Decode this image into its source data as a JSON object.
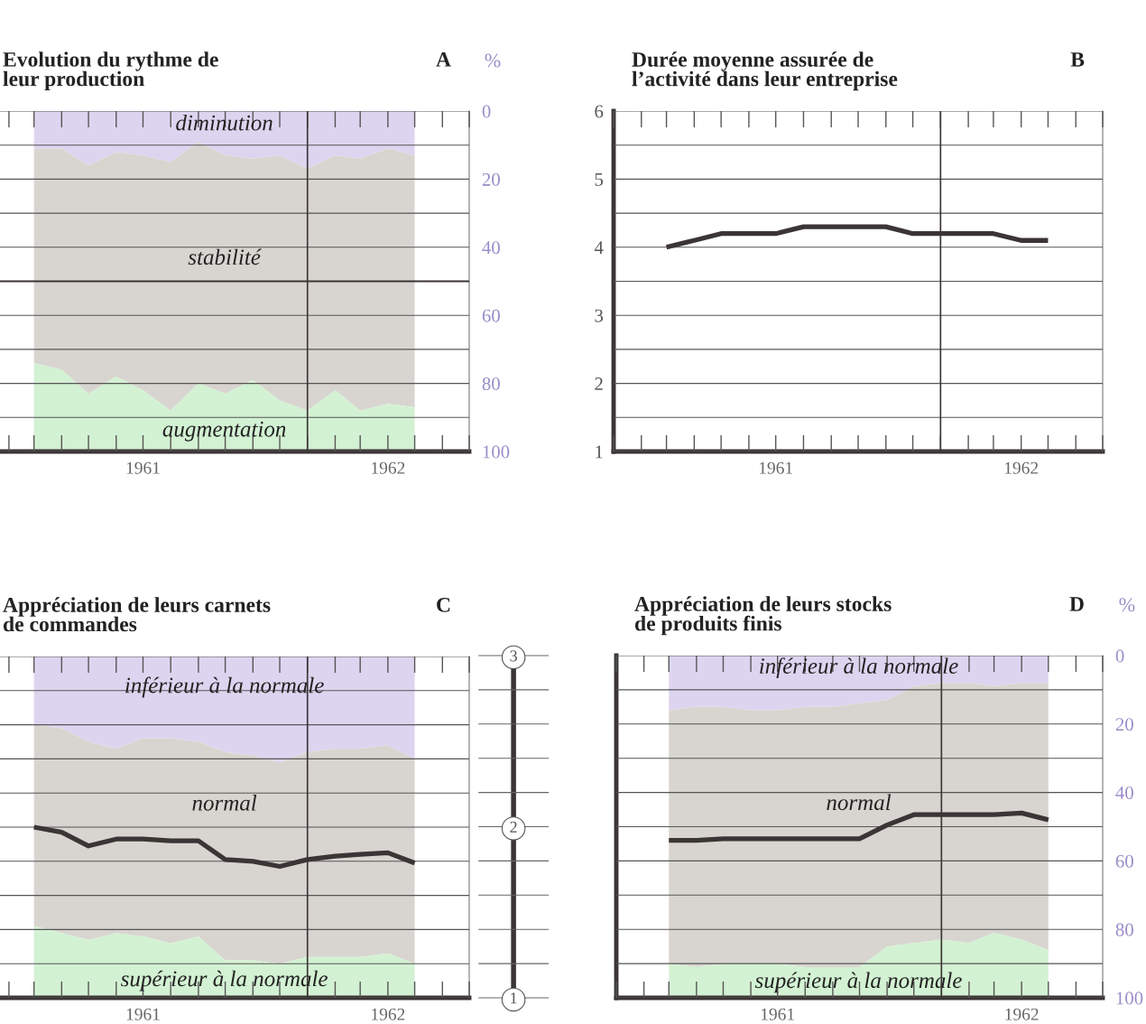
{
  "chart_data": [
    {
      "type": "area",
      "title": "Evolution du rythme de\nleur production",
      "annotations": [
        "A"
      ],
      "x": [
        "1961-03",
        "1961-04",
        "1961-05",
        "1961-06",
        "1961-07",
        "1961-08",
        "1961-09",
        "1961-10",
        "1961-11",
        "1961-12",
        "1962-01",
        "1962-02",
        "1962-03",
        "1962-04",
        "1962-05"
      ],
      "xlim": [
        "1961-01-22",
        "1962-07"
      ],
      "xticks": [
        {
          "value": "1961-07",
          "label": "1961"
        },
        {
          "value": "1962-04",
          "label": "1962"
        }
      ],
      "ylim": [
        100,
        0
      ],
      "yticks": [
        0,
        {
          "value": 10,
          "label": null
        },
        20,
        {
          "value": 30,
          "label": null
        },
        40,
        {
          "value": 50,
          "label": null
        },
        60,
        {
          "value": 70,
          "label": null
        },
        80,
        {
          "value": 90,
          "label": null
        },
        100
      ],
      "ylabel": "%",
      "stacked": true,
      "grid": "y",
      "ref_lines": [
        {
          "axis": "x",
          "value": "1962-01"
        },
        {
          "axis": "y",
          "value": 50
        }
      ],
      "series": [
        {
          "name": "diminution",
          "color": "#ddd5f0",
          "values": [
            11,
            11,
            16,
            12,
            13,
            15,
            9,
            13,
            14,
            13,
            17,
            13,
            14,
            11,
            13
          ]
        },
        {
          "name": "stabilité",
          "color": "#d8d5d0",
          "values": [
            63,
            65,
            67,
            66,
            69,
            73,
            71,
            70,
            65,
            72,
            71,
            69,
            74,
            75,
            74
          ]
        },
        {
          "name": "augmentation",
          "color": "#d3f1d3",
          "values": [
            26,
            24,
            17,
            22,
            18,
            12,
            20,
            17,
            21,
            15,
            12,
            18,
            12,
            14,
            13
          ]
        }
      ]
    },
    {
      "type": "line",
      "title": "Durée moyenne assurée de\nl’activité dans leur entreprise",
      "annotations": [
        "B"
      ],
      "x": [
        "1961-03",
        "1961-04",
        "1961-05",
        "1961-06",
        "1961-07",
        "1961-08",
        "1961-09",
        "1961-10",
        "1961-11",
        "1961-12",
        "1962-01",
        "1962-02",
        "1962-03",
        "1962-04",
        "1962-05"
      ],
      "xlim": [
        "1961-01",
        "1962-07"
      ],
      "xticks": [
        {
          "value": "1961-07",
          "label": "1961"
        },
        {
          "value": "1962-04",
          "label": "1962"
        }
      ],
      "ylim": [
        1,
        6
      ],
      "yticks": [
        1,
        {
          "value": 1.5,
          "label": null
        },
        2,
        {
          "value": 2.5,
          "label": null
        },
        3,
        {
          "value": 3.5,
          "label": null
        },
        4,
        {
          "value": 4.5,
          "label": null
        },
        5,
        {
          "value": 5.5,
          "label": null
        },
        6
      ],
      "grid": "y",
      "ref_lines": [
        {
          "axis": "x",
          "value": "1962-01"
        }
      ],
      "series": [
        {
          "color": "#3b3535",
          "values": [
            4.0,
            4.1,
            4.2,
            4.2,
            4.2,
            4.3,
            4.3,
            4.3,
            4.3,
            4.2,
            4.2,
            4.2,
            4.2,
            4.1,
            4.1
          ]
        }
      ]
    },
    {
      "type": "area",
      "title": "Appréciation de leurs carnets\nde commandes",
      "annotations": [
        "C"
      ],
      "x": [
        "1961-03",
        "1961-04",
        "1961-05",
        "1961-06",
        "1961-07",
        "1961-08",
        "1961-09",
        "1961-10",
        "1961-11",
        "1961-12",
        "1962-01",
        "1962-02",
        "1962-03",
        "1962-04",
        "1962-05"
      ],
      "xlim": [
        "1961-01-22",
        "1962-07"
      ],
      "xticks": [
        {
          "value": "1961-07",
          "label": "1961"
        },
        {
          "value": "1962-04",
          "label": "1962"
        }
      ],
      "ylim": [
        100,
        0
      ],
      "yticks": [
        0,
        10,
        20,
        30,
        40,
        50,
        60,
        70,
        80,
        90,
        100
      ],
      "y2lim": [
        1,
        3
      ],
      "y2ticks": [
        1,
        1.2,
        1.4,
        1.6,
        1.8,
        2,
        2.2,
        2.4,
        2.6,
        2.8,
        3
      ],
      "tick_labels": "x",
      "stacked": true,
      "grid": "y",
      "ref_lines": [
        {
          "axis": "x",
          "value": "1962-01"
        }
      ],
      "series": [
        {
          "name": "inférieur à la normale",
          "color": "#ddd5f0",
          "values": [
            20,
            21,
            25,
            27,
            24,
            24,
            25,
            28,
            29,
            31,
            28,
            27,
            27,
            26,
            30
          ]
        },
        {
          "name": "normal",
          "color": "#d8d5d0",
          "values": [
            59,
            60,
            58,
            54,
            58,
            60,
            57,
            61,
            60,
            59,
            60,
            61,
            61,
            61,
            60
          ]
        },
        {
          "name": "supérieur à la normale",
          "color": "#d3f1d3",
          "values": [
            21,
            19,
            17,
            19,
            18,
            16,
            18,
            11,
            11,
            10,
            12,
            12,
            12,
            13,
            10
          ]
        },
        {
          "type": "line",
          "axis": "y2",
          "color": "#3b3535",
          "values": [
            2.0,
            1.97,
            1.89,
            1.93,
            1.93,
            1.92,
            1.92,
            1.81,
            1.8,
            1.77,
            1.81,
            1.83,
            1.84,
            1.85,
            1.79
          ]
        }
      ]
    },
    {
      "type": "area",
      "title": "Appréciation de leurs stocks\nde produits finis",
      "annotations": [
        "D"
      ],
      "x": [
        "1961-03",
        "1961-04",
        "1961-05",
        "1961-06",
        "1961-07",
        "1961-08",
        "1961-09",
        "1961-10",
        "1961-11",
        "1961-12",
        "1962-01",
        "1962-02",
        "1962-03",
        "1962-04",
        "1962-05"
      ],
      "xlim": [
        "1961-01",
        "1962-07"
      ],
      "xticks": [
        {
          "value": "1961-07",
          "label": "1961"
        },
        {
          "value": "1962-04",
          "label": "1962"
        }
      ],
      "ylim": [
        100,
        0
      ],
      "yticks": [
        0,
        {
          "value": 10,
          "label": null
        },
        20,
        {
          "value": 30,
          "label": null
        },
        40,
        {
          "value": 50,
          "label": null
        },
        60,
        {
          "value": 70,
          "label": null
        },
        80,
        {
          "value": 90,
          "label": null
        },
        100
      ],
      "ylabel": "%",
      "y2lim": [
        1,
        3
      ],
      "y2ticks": [
        1,
        {
          "value": 1.2,
          "label": null
        },
        {
          "value": 1.4,
          "label": null
        },
        {
          "value": 1.6,
          "label": null
        },
        {
          "value": 1.8,
          "label": null
        },
        2,
        {
          "value": 2.2,
          "label": null
        },
        {
          "value": 2.4,
          "label": null
        },
        {
          "value": 2.6,
          "label": null
        },
        {
          "value": 2.8,
          "label": null
        },
        3
      ],
      "stacked": true,
      "grid": "y",
      "ref_lines": [
        {
          "axis": "x",
          "value": "1962-01"
        }
      ],
      "series": [
        {
          "name": "inférieur à la normale",
          "color": "#ddd5f0",
          "values": [
            16,
            15,
            15,
            16,
            16,
            15,
            15,
            14,
            13,
            9,
            8,
            8,
            9,
            8,
            8
          ]
        },
        {
          "name": "normal",
          "color": "#d8d5d0",
          "values": [
            74,
            76,
            75,
            74,
            74,
            76,
            76,
            77,
            72,
            75,
            75,
            76,
            72,
            75,
            78
          ]
        },
        {
          "name": "supérieur à la normale",
          "color": "#d3f1d3",
          "values": [
            10,
            9,
            10,
            10,
            10,
            9,
            9,
            9,
            15,
            16,
            17,
            16,
            19,
            17,
            14
          ]
        },
        {
          "type": "line",
          "axis": "y2",
          "color": "#3b3535",
          "values": [
            1.92,
            1.92,
            1.93,
            1.93,
            1.93,
            1.93,
            1.93,
            1.93,
            2.01,
            2.07,
            2.07,
            2.07,
            2.07,
            2.08,
            2.04
          ]
        }
      ]
    }
  ]
}
